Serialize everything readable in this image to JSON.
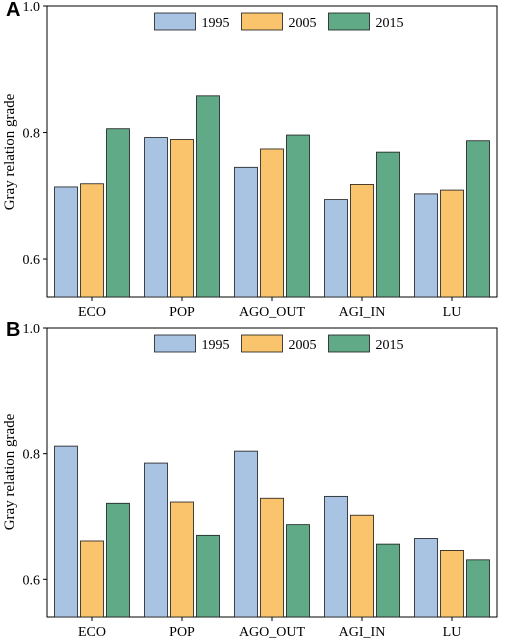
{
  "chart_data": [
    {
      "panel_label": "A",
      "type": "bar",
      "categories": [
        "ECO",
        "POP",
        "AGO_OUT",
        "AGI_IN",
        "LU"
      ],
      "series": [
        {
          "name": "1995",
          "color": "#a9c4e2",
          "values": [
            0.714,
            0.792,
            0.745,
            0.694,
            0.703
          ]
        },
        {
          "name": "2005",
          "color": "#f9c46c",
          "values": [
            0.719,
            0.789,
            0.774,
            0.718,
            0.709
          ]
        },
        {
          "name": "2015",
          "color": "#60aa88",
          "values": [
            0.806,
            0.858,
            0.796,
            0.769,
            0.787
          ]
        }
      ],
      "ylabel": "Gray relation grade",
      "ylim": [
        0.54,
        1.0
      ],
      "yticks": [
        0.6,
        0.8,
        1.0
      ],
      "ytick_labels": [
        "0.6",
        "0.8",
        "1.0"
      ],
      "legend": "top-center",
      "grid": false
    },
    {
      "panel_label": "B",
      "type": "bar",
      "categories": [
        "ECO",
        "POP",
        "AGO_OUT",
        "AGI_IN",
        "LU"
      ],
      "series": [
        {
          "name": "1995",
          "color": "#a9c4e2",
          "values": [
            0.812,
            0.785,
            0.804,
            0.732,
            0.665
          ]
        },
        {
          "name": "2005",
          "color": "#f9c46c",
          "values": [
            0.661,
            0.723,
            0.729,
            0.702,
            0.646
          ]
        },
        {
          "name": "2015",
          "color": "#60aa88",
          "values": [
            0.721,
            0.67,
            0.687,
            0.656,
            0.631
          ]
        }
      ],
      "ylabel": "Gray relation grade",
      "ylim": [
        0.54,
        1.0
      ],
      "yticks": [
        0.6,
        0.8,
        1.0
      ],
      "ytick_labels": [
        "0.6",
        "0.8",
        "1.0"
      ],
      "legend": "top-center",
      "grid": false
    }
  ]
}
